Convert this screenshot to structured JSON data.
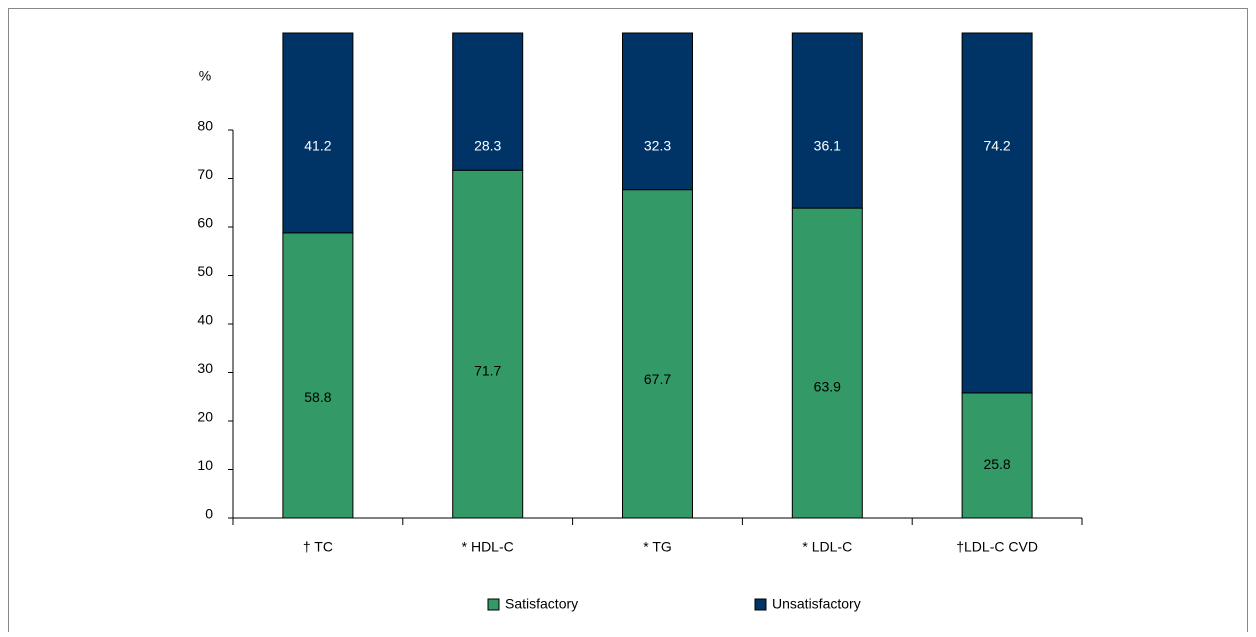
{
  "chart_data": {
    "type": "stacked_bar",
    "y_label": "%",
    "categories": [
      "† TC",
      "* HDL-C",
      "* TG",
      "* LDL-C",
      "†LDL-C CVD"
    ],
    "series": [
      {
        "name": "Satisfactory",
        "color": "#339966",
        "values": [
          58.8,
          71.7,
          67.7,
          63.9,
          25.8
        ]
      },
      {
        "name": "Unsatisfactory",
        "color": "#003366",
        "values": [
          41.2,
          28.3,
          32.3,
          36.1,
          74.2
        ]
      }
    ],
    "ylim": [
      0,
      100
    ],
    "yticks": [
      0,
      10,
      20,
      30,
      40,
      50,
      60,
      70,
      80
    ]
  }
}
